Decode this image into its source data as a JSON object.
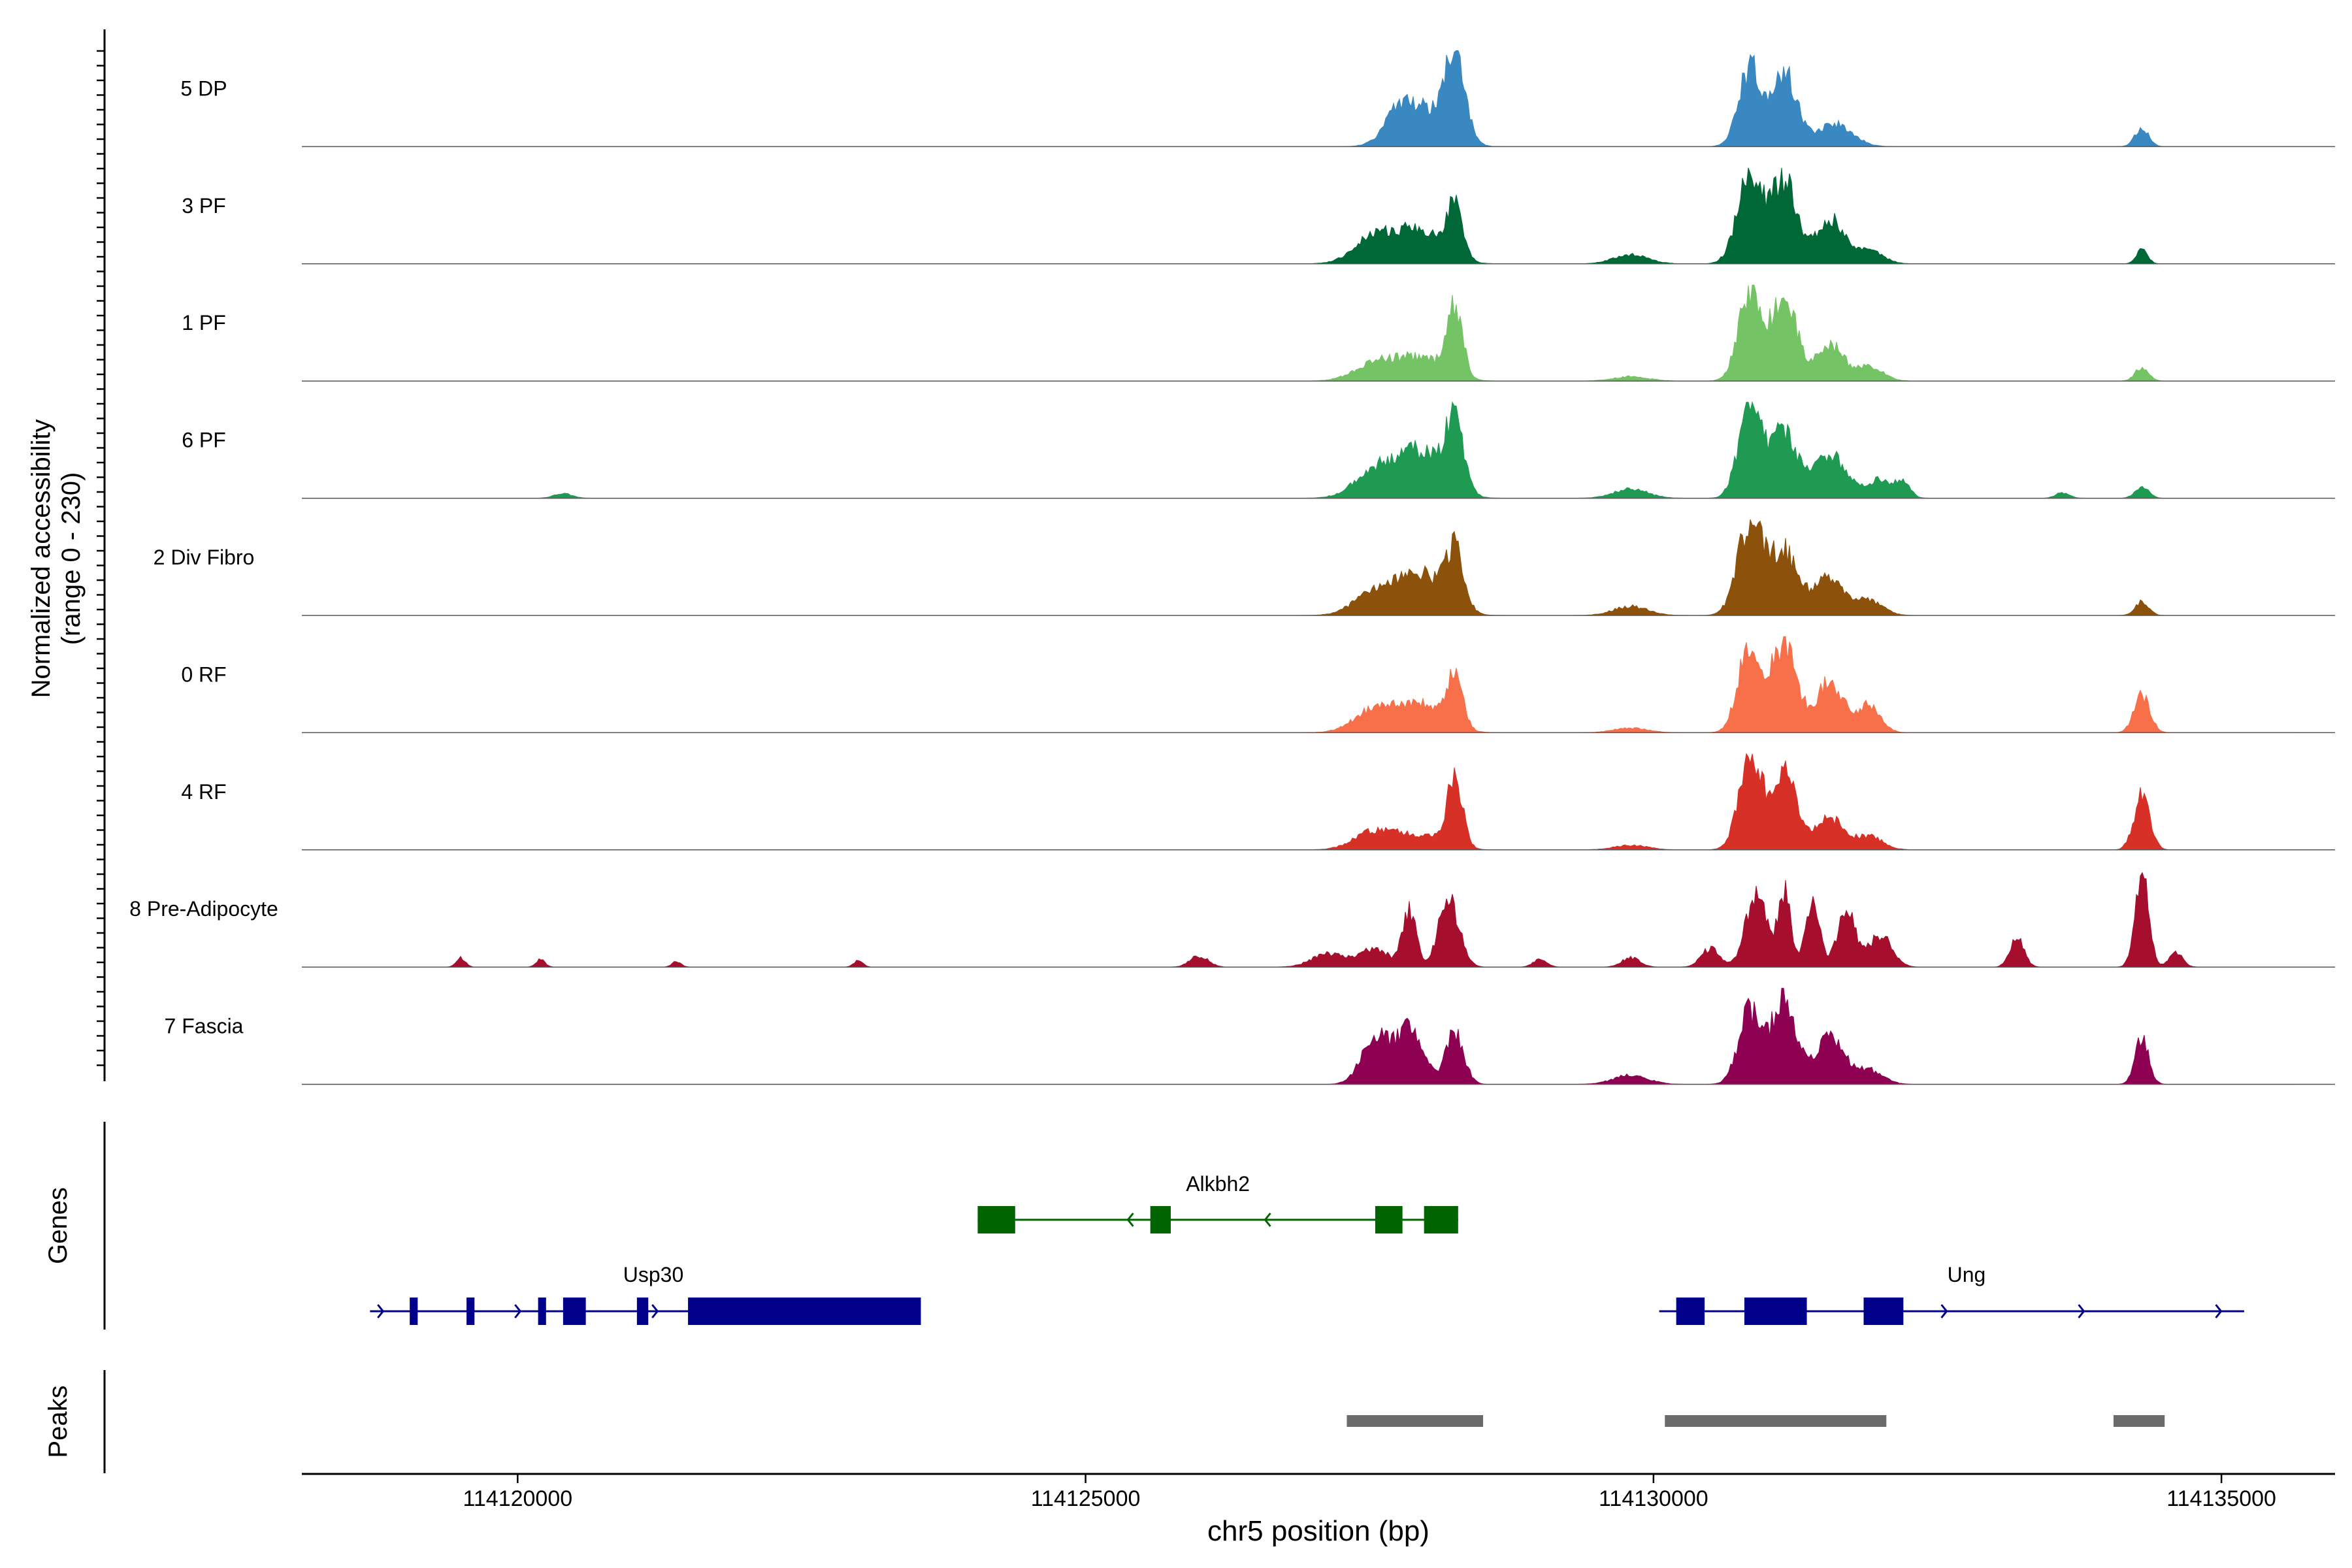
{
  "chart_data": {
    "type": "area",
    "title": "",
    "xlabel": "chr5 position (bp)",
    "ylabel": "Normalized accessibility",
    "ylabel_range": "(range 0 - 230)",
    "ylim": [
      0,
      230
    ],
    "xlim": [
      114118100,
      114136000
    ],
    "xticks": [
      114120000,
      114125000,
      114130000,
      114135000
    ],
    "xtick_labels": [
      "114120000",
      "114125000",
      "114130000",
      "114135000"
    ],
    "tracks": [
      {
        "name": "5 DP",
        "color": "#3a88c2",
        "peaks": [
          [
            114127750,
            0.22,
            120
          ],
          [
            114127950,
            0.4,
            200
          ],
          [
            114128250,
            1.0,
            90
          ],
          [
            114130850,
            0.85,
            100
          ],
          [
            114131150,
            0.8,
            110
          ],
          [
            114131600,
            0.25,
            150
          ],
          [
            114134300,
            0.2,
            60
          ]
        ]
      },
      {
        "name": "3 PF",
        "color": "#006837",
        "peaks": [
          [
            114127550,
            0.3,
            180
          ],
          [
            114127950,
            0.35,
            200
          ],
          [
            114128250,
            0.55,
            70
          ],
          [
            114129800,
            0.1,
            150
          ],
          [
            114130850,
            1.0,
            110
          ],
          [
            114131150,
            0.9,
            110
          ],
          [
            114131550,
            0.5,
            120
          ],
          [
            114131900,
            0.15,
            120
          ],
          [
            114134300,
            0.15,
            50
          ]
        ]
      },
      {
        "name": "1 PF",
        "color": "#74c365",
        "peaks": [
          [
            114127550,
            0.2,
            180
          ],
          [
            114127950,
            0.25,
            200
          ],
          [
            114128250,
            0.75,
            70
          ],
          [
            114129800,
            0.05,
            150
          ],
          [
            114130850,
            1.0,
            100
          ],
          [
            114131150,
            0.9,
            110
          ],
          [
            114131550,
            0.4,
            120
          ],
          [
            114131900,
            0.15,
            120
          ],
          [
            114134300,
            0.15,
            60
          ]
        ]
      },
      {
        "name": "6 PF",
        "color": "#1f9a53",
        "peaks": [
          [
            114127550,
            0.3,
            180
          ],
          [
            114127950,
            0.5,
            200
          ],
          [
            114128250,
            0.75,
            80
          ],
          [
            114129800,
            0.1,
            150
          ],
          [
            114130850,
            1.0,
            100
          ],
          [
            114131150,
            0.75,
            110
          ],
          [
            114131550,
            0.5,
            140
          ],
          [
            114132000,
            0.2,
            120
          ],
          [
            114132200,
            0.15,
            60
          ],
          [
            114134300,
            0.12,
            60
          ],
          [
            114120400,
            0.05,
            80
          ],
          [
            114133600,
            0.06,
            60
          ]
        ]
      },
      {
        "name": "2 Div Fibro",
        "color": "#8c510a",
        "peaks": [
          [
            114127550,
            0.25,
            180
          ],
          [
            114127950,
            0.45,
            200
          ],
          [
            114128250,
            0.62,
            80
          ],
          [
            114129800,
            0.1,
            150
          ],
          [
            114130850,
            1.0,
            110
          ],
          [
            114131150,
            0.7,
            120
          ],
          [
            114131550,
            0.4,
            140
          ],
          [
            114131900,
            0.15,
            120
          ],
          [
            114134300,
            0.15,
            60
          ]
        ]
      },
      {
        "name": "0 RF",
        "color": "#f7704a",
        "peaks": [
          [
            114127550,
            0.25,
            180
          ],
          [
            114127950,
            0.3,
            200
          ],
          [
            114128250,
            0.55,
            70
          ],
          [
            114129800,
            0.05,
            150
          ],
          [
            114130850,
            1.0,
            100
          ],
          [
            114131150,
            0.95,
            110
          ],
          [
            114131550,
            0.55,
            120
          ],
          [
            114131900,
            0.3,
            100
          ],
          [
            114134300,
            0.4,
            70
          ]
        ]
      },
      {
        "name": "4 RF",
        "color": "#d73027",
        "peaks": [
          [
            114127550,
            0.2,
            180
          ],
          [
            114127950,
            0.15,
            200
          ],
          [
            114128250,
            0.72,
            70
          ],
          [
            114129800,
            0.05,
            150
          ],
          [
            114130850,
            1.0,
            100
          ],
          [
            114131150,
            0.9,
            110
          ],
          [
            114131550,
            0.35,
            120
          ],
          [
            114131900,
            0.15,
            120
          ],
          [
            114134300,
            0.6,
            70
          ]
        ]
      },
      {
        "name": "8 Pre-Adipocyte",
        "color": "#a50f2d",
        "peaks": [
          [
            114127150,
            0.15,
            150
          ],
          [
            114127550,
            0.2,
            120
          ],
          [
            114127850,
            0.6,
            60
          ],
          [
            114128200,
            0.75,
            90
          ],
          [
            114129000,
            0.08,
            60
          ],
          [
            114129800,
            0.1,
            80
          ],
          [
            114130500,
            0.2,
            80
          ],
          [
            114130900,
            0.8,
            90
          ],
          [
            114131150,
            0.8,
            60
          ],
          [
            114131400,
            0.75,
            60
          ],
          [
            114131700,
            0.6,
            80
          ],
          [
            114132000,
            0.35,
            100
          ],
          [
            114133200,
            0.35,
            60
          ],
          [
            114134300,
            1.0,
            60
          ],
          [
            114134600,
            0.15,
            60
          ],
          [
            114119500,
            0.1,
            40
          ],
          [
            114120200,
            0.08,
            40
          ],
          [
            114121400,
            0.06,
            40
          ],
          [
            114123000,
            0.07,
            40
          ],
          [
            114126000,
            0.12,
            80
          ]
        ]
      },
      {
        "name": "7 Fascia",
        "color": "#8e0152",
        "peaks": [
          [
            114127550,
            0.5,
            120
          ],
          [
            114127850,
            0.6,
            120
          ],
          [
            114128250,
            0.55,
            80
          ],
          [
            114129800,
            0.1,
            150
          ],
          [
            114130850,
            0.8,
            100
          ],
          [
            114131150,
            1.0,
            100
          ],
          [
            114131550,
            0.5,
            130
          ],
          [
            114131900,
            0.15,
            120
          ],
          [
            114134300,
            0.5,
            60
          ]
        ]
      }
    ],
    "genes_label": "Genes",
    "peaks_label": "Peaks",
    "genes": [
      {
        "name": "Alkbh2",
        "color": "#006400",
        "strand": "-",
        "start": 114124050,
        "end": 114128280,
        "exons": [
          [
            114124050,
            114124380
          ],
          [
            114125570,
            114125750
          ],
          [
            114127550,
            114127790
          ],
          [
            114127980,
            114128280
          ]
        ]
      },
      {
        "name": "Usp30",
        "color": "#00008b",
        "strand": "+",
        "start": 114118700,
        "end": 114123550,
        "exons": [
          [
            114119050,
            114119120
          ],
          [
            114119550,
            114119620
          ],
          [
            114120180,
            114120250
          ],
          [
            114120400,
            114120600
          ],
          [
            114121050,
            114121150
          ],
          [
            114121500,
            114123550
          ]
        ]
      },
      {
        "name": "Ung",
        "color": "#00008b",
        "strand": "+",
        "start": 114130050,
        "end": 114135200,
        "exons": [
          [
            114130200,
            114130450
          ],
          [
            114130800,
            114131350
          ],
          [
            114131850,
            114132200
          ]
        ]
      }
    ],
    "called_peaks": [
      [
        114127300,
        114128500
      ],
      [
        114130100,
        114132050
      ],
      [
        114134050,
        114134500
      ]
    ]
  }
}
